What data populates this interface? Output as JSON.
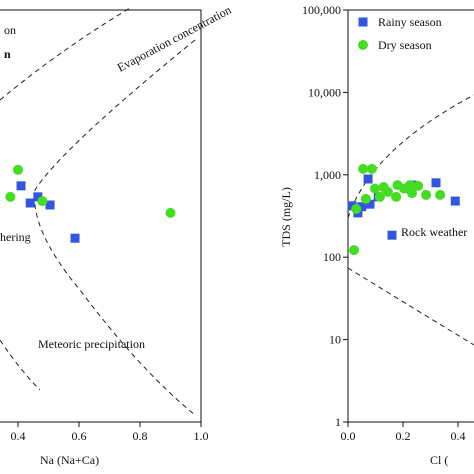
{
  "chart_data": [
    {
      "type": "scatter",
      "xlabel": "Na (Na+Ca)",
      "xlim": [
        0,
        1
      ],
      "xticks": [
        {
          "value": 0.4,
          "label": "0.4"
        },
        {
          "value": 0.6,
          "label": "0.6"
        },
        {
          "value": 0.8,
          "label": "0.8"
        },
        {
          "value": 1.0,
          "label": "1.0"
        }
      ],
      "ylim": [
        1,
        100000
      ],
      "log_y": true,
      "annotations": [
        "on",
        "n",
        "Evaporation concentration",
        "hering",
        "Meteoric precipitation"
      ],
      "series": [
        {
          "name": "Rainy season",
          "color": "#3356e0",
          "marker": "square",
          "x": [
            0.41,
            0.44,
            0.465,
            0.505,
            0.587
          ],
          "values": [
            735,
            455,
            540,
            430,
            170
          ]
        },
        {
          "name": "Dry season",
          "color": "#44dd22",
          "marker": "circle",
          "x": [
            0.4,
            0.375,
            0.48,
            0.9
          ],
          "values": [
            1150,
            540,
            480,
            345
          ]
        }
      ]
    },
    {
      "type": "scatter",
      "xlabel": "Cl (",
      "ylabel": "TDS (mg/L)",
      "xlim": [
        0,
        1
      ],
      "xticks": [
        {
          "value": 0,
          "label": "0.0"
        },
        {
          "value": 0.2,
          "label": "0.2"
        },
        {
          "value": 0.4,
          "label": "0.4"
        }
      ],
      "ylim": [
        1,
        100000
      ],
      "log_y": true,
      "yticks": [
        1,
        10,
        100,
        {
          "value": 1000,
          "label": "1,000"
        },
        {
          "value": 10000,
          "label": "10,000"
        },
        {
          "value": 100000,
          "label": "100,000"
        }
      ],
      "annotations": [
        "Rock weather"
      ],
      "legend": "upper left",
      "series": [
        {
          "name": "Rainy season",
          "color": "#3356e0",
          "marker": "square",
          "x": [
            0.015,
            0.036,
            0.073,
            0.05,
            0.08,
            0.16,
            0.22,
            0.233,
            0.32,
            0.39,
            0.11
          ],
          "values": [
            420,
            345,
            890,
            410,
            440,
            185,
            680,
            750,
            800,
            480,
            540
          ]
        },
        {
          "name": "Dry season",
          "color": "#44dd22",
          "marker": "circle",
          "x": [
            0.022,
            0.055,
            0.087,
            0.098,
            0.116,
            0.145,
            0.175,
            0.204,
            0.225,
            0.255,
            0.284,
            0.335,
            0.03,
            0.065,
            0.13,
            0.18,
            0.233
          ],
          "values": [
            122,
            1180,
            1180,
            680,
            540,
            620,
            540,
            680,
            750,
            735,
            570,
            570,
            385,
            510,
            710,
            750,
            600
          ]
        }
      ]
    }
  ]
}
